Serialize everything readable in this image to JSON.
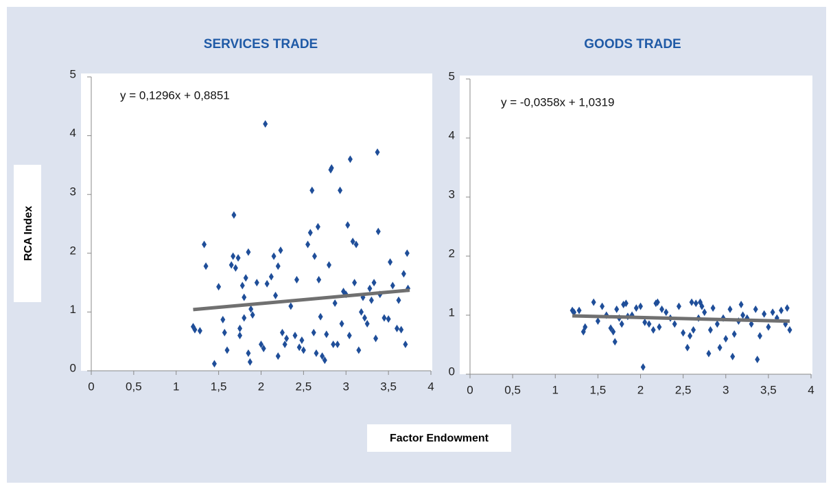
{
  "figure": {
    "ylabel": "RCA Index",
    "xlabel": "Factor Endowment"
  },
  "chart_data": [
    {
      "type": "scatter",
      "title": "SERVICES TRADE",
      "annotation": "y = 0,1296x + 0,8851",
      "color": "#1f4e99",
      "trendline": {
        "slope": 0.1296,
        "intercept": 0.8851,
        "x_range": [
          1.2,
          3.75
        ],
        "color": "#707070"
      },
      "xlim": [
        0,
        4
      ],
      "ylim": [
        0,
        5
      ],
      "xticks": [
        0,
        {
          "value": 0.5,
          "label": "0,5"
        },
        1,
        {
          "value": 1.5,
          "label": "1,5"
        },
        2,
        {
          "value": 2.5,
          "label": "2,5"
        },
        3,
        {
          "value": 3.5,
          "label": "3,5"
        },
        4
      ],
      "yticks": [
        0,
        1,
        2,
        3,
        4,
        5
      ],
      "x": [
        1.2,
        1.22,
        1.28,
        1.33,
        1.35,
        1.45,
        1.5,
        1.55,
        1.57,
        1.6,
        1.65,
        1.67,
        1.68,
        1.7,
        1.73,
        1.75,
        1.75,
        1.78,
        1.8,
        1.8,
        1.82,
        1.85,
        1.85,
        1.87,
        1.88,
        1.9,
        1.95,
        2.0,
        2.03,
        2.05,
        2.07,
        2.12,
        2.15,
        2.17,
        2.2,
        2.2,
        2.23,
        2.25,
        2.28,
        2.3,
        2.35,
        2.4,
        2.42,
        2.45,
        2.48,
        2.5,
        2.55,
        2.58,
        2.6,
        2.62,
        2.63,
        2.65,
        2.67,
        2.68,
        2.7,
        2.72,
        2.75,
        2.77,
        2.8,
        2.82,
        2.83,
        2.85,
        2.87,
        2.9,
        2.93,
        2.95,
        2.97,
        3.0,
        3.02,
        3.04,
        3.05,
        3.08,
        3.1,
        3.12,
        3.15,
        3.18,
        3.2,
        3.22,
        3.25,
        3.28,
        3.3,
        3.33,
        3.35,
        3.37,
        3.38,
        3.4,
        3.45,
        3.5,
        3.52,
        3.55,
        3.6,
        3.62,
        3.65,
        3.68,
        3.7,
        3.72,
        3.73
      ],
      "values": [
        0.75,
        0.7,
        0.68,
        2.15,
        1.78,
        0.12,
        1.43,
        0.87,
        0.65,
        0.35,
        1.8,
        1.95,
        2.65,
        1.75,
        1.92,
        0.72,
        0.6,
        1.45,
        1.25,
        0.9,
        1.58,
        2.02,
        0.3,
        0.15,
        1.05,
        0.95,
        1.5,
        0.45,
        0.38,
        4.2,
        1.48,
        1.6,
        1.95,
        1.28,
        0.25,
        1.78,
        2.05,
        0.65,
        0.45,
        0.55,
        1.1,
        0.6,
        1.55,
        0.4,
        0.52,
        0.35,
        2.15,
        2.35,
        3.07,
        0.65,
        1.95,
        0.3,
        2.45,
        1.55,
        0.92,
        0.25,
        0.18,
        0.62,
        1.8,
        3.42,
        3.45,
        0.45,
        1.15,
        0.45,
        3.07,
        0.8,
        1.35,
        1.3,
        2.48,
        0.6,
        3.6,
        2.2,
        1.5,
        2.15,
        0.35,
        1.0,
        1.25,
        0.9,
        0.8,
        1.4,
        1.2,
        1.5,
        0.55,
        3.72,
        2.37,
        1.3,
        0.9,
        0.88,
        1.85,
        1.45,
        0.72,
        1.2,
        0.7,
        1.65,
        0.45,
        2.0,
        1.4
      ]
    },
    {
      "type": "scatter",
      "title": "GOODS TRADE",
      "annotation": "y =  -0,0358x + 1,0319",
      "color": "#1f4e99",
      "trendline": {
        "slope": -0.0358,
        "intercept": 1.0319,
        "x_range": [
          1.2,
          3.75
        ],
        "color": "#707070"
      },
      "xlim": [
        0,
        4
      ],
      "ylim": [
        0,
        5
      ],
      "xticks": [
        0,
        {
          "value": 0.5,
          "label": "0,5"
        },
        1,
        {
          "value": 1.5,
          "label": "1,5"
        },
        2,
        {
          "value": 2.5,
          "label": "2,5"
        },
        3,
        {
          "value": 3.5,
          "label": "3,5"
        },
        4
      ],
      "yticks": [
        0,
        1,
        2,
        3,
        4,
        5
      ],
      "x": [
        1.2,
        1.22,
        1.28,
        1.33,
        1.35,
        1.45,
        1.5,
        1.55,
        1.6,
        1.65,
        1.68,
        1.7,
        1.72,
        1.75,
        1.78,
        1.8,
        1.83,
        1.85,
        1.9,
        1.95,
        2.0,
        2.03,
        2.05,
        2.1,
        2.15,
        2.18,
        2.2,
        2.22,
        2.25,
        2.3,
        2.35,
        2.4,
        2.45,
        2.5,
        2.55,
        2.58,
        2.6,
        2.62,
        2.65,
        2.68,
        2.7,
        2.72,
        2.75,
        2.8,
        2.82,
        2.85,
        2.9,
        2.93,
        2.97,
        3.0,
        3.05,
        3.08,
        3.1,
        3.15,
        3.18,
        3.2,
        3.25,
        3.3,
        3.35,
        3.37,
        3.4,
        3.45,
        3.5,
        3.55,
        3.6,
        3.65,
        3.7,
        3.72,
        3.75
      ],
      "values": [
        1.08,
        1.05,
        1.08,
        0.72,
        0.8,
        1.22,
        0.9,
        1.15,
        1.0,
        0.78,
        0.72,
        0.55,
        1.1,
        0.95,
        0.85,
        1.18,
        1.2,
        0.98,
        1.0,
        1.12,
        1.15,
        0.12,
        0.88,
        0.85,
        0.75,
        1.2,
        1.22,
        0.8,
        1.1,
        1.05,
        0.95,
        0.85,
        1.15,
        0.7,
        0.45,
        0.65,
        1.22,
        0.75,
        1.2,
        0.95,
        1.22,
        1.15,
        1.05,
        0.35,
        0.75,
        1.12,
        0.85,
        0.45,
        0.95,
        0.6,
        1.1,
        0.3,
        0.68,
        0.9,
        1.18,
        1.0,
        0.95,
        0.85,
        1.1,
        0.25,
        0.65,
        1.02,
        0.8,
        1.05,
        0.95,
        1.08,
        0.85,
        1.12,
        0.75
      ]
    }
  ]
}
